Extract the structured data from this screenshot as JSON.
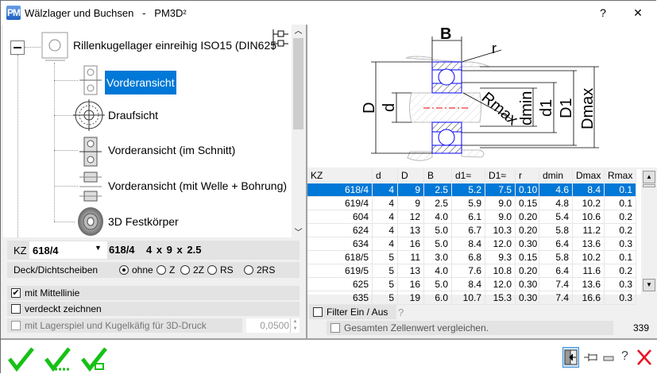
{
  "window": {
    "title": "Wälzlager und Buchsen   -   PM3D²",
    "app_icon": "PM",
    "help_button": "?",
    "close_button": "✕"
  },
  "tree": {
    "root": "Rillenkugellager einreihig  ISO15 (DIN625",
    "items": [
      {
        "label": "Vorderansicht",
        "selected": true
      },
      {
        "label": "Draufsicht"
      },
      {
        "label": "Vorderansicht (im Schnitt)"
      },
      {
        "label": "Vorderansicht (mit Welle + Bohrung)"
      },
      {
        "label": "3D Festkörper"
      }
    ]
  },
  "selection": {
    "kz_label": "KZ",
    "kz_value": "618/4",
    "summary_code": "618/4",
    "summary_dims": "4 x 9 x 2.5"
  },
  "seals": {
    "label": "Deck/Dichtscheiben",
    "options": [
      "ohne",
      "Z",
      "2Z",
      "RS",
      "2RS"
    ],
    "selected": "ohne"
  },
  "options": {
    "centerline": {
      "label": "mit Mittellinie",
      "checked": true
    },
    "hidden": {
      "label": "verdeckt zeichnen",
      "checked": false
    },
    "print3d": {
      "label": "mit Lagerspiel und Kugelkäfig für 3D-Druck",
      "checked": false,
      "disabled": true,
      "value": "0,0500"
    }
  },
  "drawing": {
    "labels": {
      "B": "B",
      "r": "r",
      "D": "D",
      "d": "d",
      "Rmax": "Rmax",
      "dmin": "dmin",
      "d1": "d1",
      "D1": "D1",
      "Dmax": "Dmax"
    }
  },
  "table": {
    "columns": [
      "KZ",
      "d",
      "D",
      "B",
      "d1≈",
      "D1≈",
      "r",
      "dmin",
      "Dmax",
      "Rmax"
    ],
    "rows": [
      [
        "618/4",
        "4",
        "9",
        "2.5",
        "5.2",
        "7.5",
        "0.10",
        "4.6",
        "8.4",
        "0.1"
      ],
      [
        "619/4",
        "4",
        "9",
        "2.5",
        "5.9",
        "9.0",
        "0.15",
        "4.8",
        "10.2",
        "0.1"
      ],
      [
        "604",
        "4",
        "12",
        "4.0",
        "6.1",
        "9.0",
        "0.20",
        "5.4",
        "10.6",
        "0.2"
      ],
      [
        "624",
        "4",
        "13",
        "5.0",
        "6.7",
        "10.3",
        "0.20",
        "5.8",
        "11.2",
        "0.2"
      ],
      [
        "634",
        "4",
        "16",
        "5.0",
        "8.4",
        "12.0",
        "0.30",
        "6.4",
        "13.6",
        "0.3"
      ],
      [
        "618/5",
        "5",
        "11",
        "3.0",
        "6.8",
        "9.3",
        "0.15",
        "5.8",
        "10.2",
        "0.1"
      ],
      [
        "619/5",
        "5",
        "13",
        "4.0",
        "7.6",
        "10.8",
        "0.20",
        "6.4",
        "11.6",
        "0.2"
      ],
      [
        "625",
        "5",
        "16",
        "5.0",
        "8.4",
        "12.0",
        "0.30",
        "7.4",
        "13.6",
        "0.3"
      ],
      [
        "635",
        "5",
        "19",
        "6.0",
        "10.7",
        "15.3",
        "0.30",
        "7.4",
        "16.6",
        "0.3"
      ]
    ],
    "selected_row": 0
  },
  "filter": {
    "label": "Filter Ein / Aus",
    "checked": false,
    "help": "?",
    "compare_label": "Gesamten Zellenwert vergleichen.",
    "compare_checked": false,
    "count": "339"
  },
  "colors": {
    "accent": "#0078d7",
    "ok_green": "#16c116",
    "close_red": "#e81123",
    "bearing_blue": "#0000ff"
  }
}
